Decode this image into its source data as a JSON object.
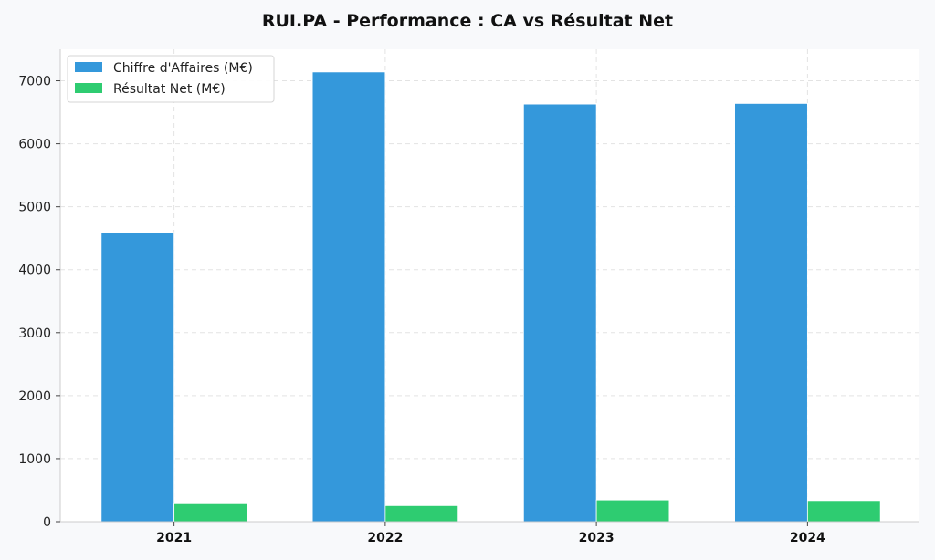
{
  "chart_data": {
    "type": "bar",
    "title": "RUI.PA - Performance : CA vs Résultat Net",
    "xlabel": "",
    "ylabel": "",
    "categories": [
      "2021",
      "2022",
      "2023",
      "2024"
    ],
    "series": [
      {
        "name": "Chiffre d'Affaires (M€)",
        "color": "#3498db",
        "values": [
          4590,
          7140,
          6630,
          6640
        ]
      },
      {
        "name": "Résultat Net (M€)",
        "color": "#2ecc71",
        "values": [
          285,
          255,
          345,
          335
        ]
      }
    ],
    "ylim": [
      0,
      7500
    ],
    "yticks": [
      0,
      1000,
      2000,
      3000,
      4000,
      5000,
      6000,
      7000
    ],
    "grid": true,
    "legend_position": "top-left"
  }
}
